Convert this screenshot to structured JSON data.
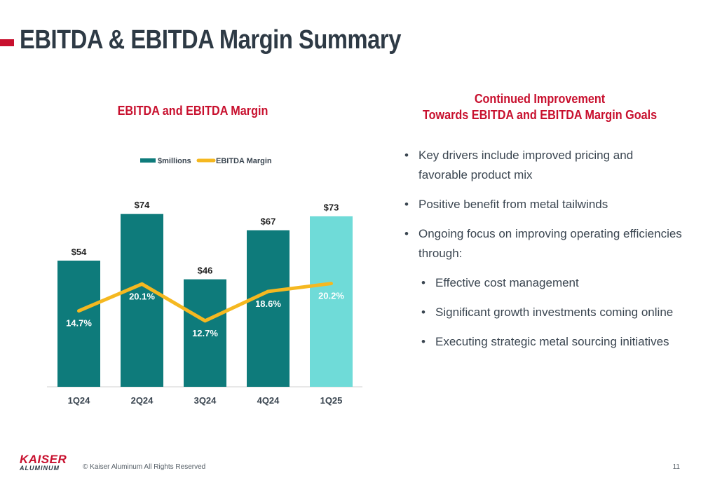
{
  "header": {
    "title": "EBITDA & EBITDA Margin Summary"
  },
  "right_panel": {
    "title_line1": "Continued Improvement",
    "title_line2": "Towards EBITDA and EBITDA Margin Goals",
    "bullets": [
      "Key drivers include improved pricing and favorable product mix",
      "Positive benefit from metal tailwinds",
      "Ongoing focus on improving operating efficiencies through:"
    ],
    "sub_bullets": [
      "Effective cost management",
      "Significant growth investments coming online",
      "Executing strategic metal sourcing initiatives"
    ],
    "bullet_symbol": "•"
  },
  "footer": {
    "logo_line1": "KAISER",
    "logo_line2": "ALUMINUM",
    "copyright": "© Kaiser Aluminum All Rights Reserved",
    "page_number": "11"
  },
  "chart_data": {
    "type": "bar",
    "title": "EBITDA and EBITDA Margin",
    "categories": [
      "1Q24",
      "2Q24",
      "3Q24",
      "4Q24",
      "1Q25"
    ],
    "series": [
      {
        "name": "$millions",
        "type": "bar",
        "values": [
          54,
          74,
          46,
          67,
          73
        ],
        "labels": [
          "$54",
          "$74",
          "$46",
          "$67",
          "$73"
        ],
        "color": "#0e7b7b",
        "highlight_color": "#6fdbd8",
        "highlight_index": 4
      },
      {
        "name": "EBITDA Margin",
        "type": "line",
        "values": [
          14.7,
          20.1,
          12.7,
          18.6,
          20.2
        ],
        "labels": [
          "14.7%",
          "20.1%",
          "12.7%",
          "18.6%",
          "20.2%"
        ],
        "color": "#f5b820"
      }
    ],
    "legend_position": "top-center",
    "grid": false
  }
}
